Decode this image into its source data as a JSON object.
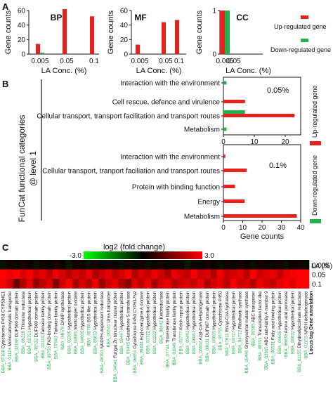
{
  "panel_labels": [
    "A",
    "B",
    "C"
  ],
  "colors": {
    "up": "#e8211c",
    "down": "#22b14c",
    "axis": "#111111"
  },
  "legend_a": {
    "up": "Up-regulated gene",
    "down": "Down-regulated gene"
  },
  "legend_b": {
    "up": "Up-regulated gene",
    "down": "Down-regulated gene"
  },
  "chart_data": [
    {
      "type": "bar",
      "title": "BP",
      "categories": [
        "0.005",
        "0.05",
        "0.1"
      ],
      "series": [
        {
          "name": "Up-regulated gene",
          "values": [
            14,
            62,
            52
          ]
        },
        {
          "name": "Down-regulated gene",
          "values": [
            2,
            0,
            0
          ]
        }
      ],
      "ylabel": "Gene counts",
      "xlabel": "LA Conc. (%)",
      "ylim": [
        0,
        60
      ],
      "yticks": [
        "0",
        "20",
        "40",
        "60"
      ]
    },
    {
      "type": "bar",
      "title": "MF",
      "categories": [
        "0.005",
        "0.05",
        "0.1"
      ],
      "series": [
        {
          "name": "Up-regulated gene",
          "values": [
            13,
            44,
            47
          ]
        },
        {
          "name": "Down-regulated gene",
          "values": [
            0,
            0,
            0
          ]
        }
      ],
      "ylabel": "Gene counts",
      "xlabel": "LA Conc. (%)",
      "ylim": [
        0,
        60
      ],
      "yticks": [
        "0",
        "20",
        "40",
        "60"
      ]
    },
    {
      "type": "bar",
      "title": "CC",
      "categories": [
        "0.005",
        "0.05"
      ],
      "series": [
        {
          "name": "Up-regulated gene",
          "values": [
            1,
            0
          ]
        },
        {
          "name": "Down-regulated gene",
          "values": [
            1,
            0
          ]
        }
      ],
      "ylabel": "Gene counts",
      "xlabel": "LA Conc. (%)",
      "ylim": [
        0,
        1
      ],
      "yticks": [
        "0",
        "1"
      ]
    },
    {
      "type": "bar",
      "orientation": "horizontal",
      "ylabel": "FunCat functional categories\n@ level 1",
      "xlabel": "Gene counts",
      "groups": [
        {
          "label": "0.05%",
          "xlim": [
            0,
            25
          ],
          "xticks": [
            "0",
            "10",
            "20"
          ],
          "categories": [
            "Interaction with the environment",
            "Cell rescue, defence and virulence",
            "Cellular transport, transport facilitation and transport routes",
            "Metabolism"
          ],
          "series": [
            {
              "name": "Up-regulated gene",
              "values": [
                0,
                7,
                23,
                0
              ]
            },
            {
              "name": "Down-regulated gene",
              "values": [
                1,
                0,
                7,
                1
              ]
            }
          ]
        },
        {
          "label": "0.1%",
          "xlim": [
            0,
            40
          ],
          "xticks": [
            "0",
            "10",
            "20",
            "30",
            "40"
          ],
          "categories": [
            "Interaction with the environment",
            "Cellular transport, tranport faciliation and transport routes",
            "Protein with binding function",
            "Energy",
            "Metabolism"
          ],
          "series": [
            {
              "name": "Up-regulated gene",
              "values": [
                1,
                12,
                6,
                11,
                38
              ]
            },
            {
              "name": "Down-regulated gene",
              "values": [
                0,
                0,
                0,
                0,
                0
              ]
            }
          ]
        }
      ]
    },
    {
      "type": "heatmap",
      "colorbar": {
        "label": "log2 (fold change)",
        "min_label": "-3.0",
        "max_label": "3.0",
        "min": -3,
        "max": 3
      },
      "row_header": "LA (%)",
      "rows": [
        "0.005",
        "0.05",
        "0.1"
      ],
      "locus_header": "Locus tag",
      "annotation_header": "Gene annotation",
      "columns": [
        {
          "locus": "BBA_07168",
          "annotation": "Cytochrome P450 CYP504E1"
        },
        {
          "locus": "BBA_01124",
          "annotation": "Monocarboxylate transporter"
        },
        {
          "locus": "BBA_02198",
          "annotation": "DUF500 domain protein"
        },
        {
          "locus": "BBA_06219",
          "annotation": "Thioester reductase"
        },
        {
          "locus": "BBA_02751",
          "annotation": "Hypothetical protein"
        },
        {
          "locus": "BBA_06532",
          "annotation": "DUF500 domain protein"
        },
        {
          "locus": "BBA_03110",
          "annotation": "Tannase family protein"
        },
        {
          "locus": "BBA_09753",
          "annotation": "FAD-binding domain protein"
        },
        {
          "locus": "BBA_07041",
          "annotation": "Tannase family protein"
        },
        {
          "locus": "BBA_04678",
          "annotation": "DAHP synthetase"
        },
        {
          "locus": "BBA_03305",
          "annotation": "Hypothetical protein"
        },
        {
          "locus": "BBA_04681",
          "annotation": "Multicopper oxidase"
        },
        {
          "locus": "BBA_04605",
          "annotation": "Hypothetical protein"
        },
        {
          "locus": "BBA_05760",
          "annotation": "BSS-like protein"
        },
        {
          "locus": "BBA_05633",
          "annotation": "Hypothetical protein"
        },
        {
          "locus": "BBA_08391",
          "annotation": "NADPH-dependent reductase"
        },
        {
          "locus": "BBA_06541",
          "annotation": "Urea transporter"
        },
        {
          "locus": "BBA_04641",
          "annotation": "Fungal Zn binuclear cluster protein"
        },
        {
          "locus": "BBA_09447",
          "annotation": "Hypothetical protein"
        },
        {
          "locus": "BBA_06445",
          "annotation": "Glutathione S-transferase"
        },
        {
          "locus": "BBA_06651",
          "annotation": "Cytochrome P450 CYP617N2"
        },
        {
          "locus": "BBA_09444",
          "annotation": "Acyl-coenzyme A oxidase"
        },
        {
          "locus": "BBA_03722",
          "annotation": "Hypothetical protein"
        },
        {
          "locus": "BBA_01223",
          "annotation": "Hypothetical protein"
        },
        {
          "locus": "BBA_08442",
          "annotation": "Ketoreductase"
        },
        {
          "locus": "BBA_07744",
          "annotation": "Thioesterase family protein"
        },
        {
          "locus": "BBA_01049",
          "annotation": "Transferase family protein"
        },
        {
          "locus": "BBA_03777",
          "annotation": "Kelch repeat protein"
        },
        {
          "locus": "BBA_00443",
          "annotation": "Hypothetical protein"
        },
        {
          "locus": "BBA_08061",
          "annotation": "Hypothetical protein"
        },
        {
          "locus": "BBA_06602",
          "annotation": "Acyl-CoA dehydrogenase"
        },
        {
          "locus": "BBA_08631",
          "annotation": "DUF907 domain protein"
        },
        {
          "locus": "BBA_06603",
          "annotation": "Hypothetical protein"
        },
        {
          "locus": "BBA_05755",
          "annotation": "Cytochrome P450"
        },
        {
          "locus": "BBA_07811",
          "annotation": "Enoyl-CoA hydratase"
        },
        {
          "locus": "BBA_04727",
          "annotation": "Hypothetical protein"
        },
        {
          "locus": "BBA_04712",
          "annotation": "Riboflavin synthase"
        },
        {
          "locus": "BBA_05446",
          "annotation": "Glyoxysomal malate synthase"
        },
        {
          "locus": "BBA_05505",
          "annotation": "ABC transporter"
        },
        {
          "locus": "BBA_08151",
          "annotation": "Transcription factor-like"
        },
        {
          "locus": "BBA_03865",
          "annotation": "ABC sub-family A member 9"
        },
        {
          "locus": "BBA_06531",
          "annotation": "Fatty acid-binding protein"
        },
        {
          "locus": "BBA_06605",
          "annotation": "Hypothetical protein"
        },
        {
          "locus": "BBA_06638",
          "annotation": "Amino acid permease"
        },
        {
          "locus": "BBA_06632",
          "annotation": "Hypothetical protein"
        },
        {
          "locus": "BBA_01155",
          "annotation": "Dihydrodipicolinate reductase"
        },
        {
          "locus": "BBA_01153",
          "annotation": "NADH dehydrogenase"
        }
      ],
      "values": [
        [
          -0.2,
          0.2,
          -0.1,
          0.3,
          0.1,
          -0.2,
          0.2,
          -0.1,
          0.3,
          0.1,
          -0.3,
          0.2,
          0.1,
          -0.2,
          0.3,
          -0.1,
          0.2,
          0.1,
          -0.2,
          0.3,
          -0.1,
          0.2,
          -0.2,
          0.1,
          0.3,
          -0.1,
          0.2,
          0.1,
          -0.3,
          0.2,
          -0.1,
          0.3,
          0.1,
          -0.2,
          0.2,
          -0.1,
          0.3,
          0.1,
          -0.2,
          0.2,
          0.1,
          -0.1,
          0.3,
          -0.2,
          0.1,
          0.2,
          -0.1
        ],
        [
          3.0,
          2.8,
          3.0,
          2.6,
          2.9,
          2.4,
          2.7,
          2.2,
          2.8,
          2.5,
          2.1,
          2.6,
          2.3,
          2.8,
          2.0,
          2.4,
          2.7,
          2.2,
          2.5,
          2.9,
          2.1,
          2.6,
          2.3,
          2.8,
          2.4,
          2.0,
          2.7,
          2.5,
          2.2,
          2.9,
          2.4,
          2.6,
          2.1,
          2.8,
          2.3,
          2.5,
          2.7,
          2.2,
          2.9,
          2.4,
          2.6,
          2.8,
          2.3,
          2.7,
          2.9,
          3.0,
          3.0
        ],
        [
          2.9,
          2.4,
          1.3,
          2.0,
          2.7,
          1.7,
          2.2,
          2.6,
          1.5,
          2.4,
          2.9,
          1.9,
          2.5,
          2.1,
          2.8,
          1.8,
          2.4,
          2.7,
          2.0,
          1.6,
          2.6,
          2.2,
          2.8,
          1.9,
          2.5,
          2.7,
          2.1,
          2.4,
          2.6,
          2.3,
          2.8,
          2.0,
          2.5,
          2.7,
          2.2,
          2.9,
          2.4,
          2.6,
          2.1,
          2.8,
          2.5,
          2.3,
          2.7,
          2.9,
          2.6,
          3.0,
          3.0
        ]
      ]
    }
  ]
}
